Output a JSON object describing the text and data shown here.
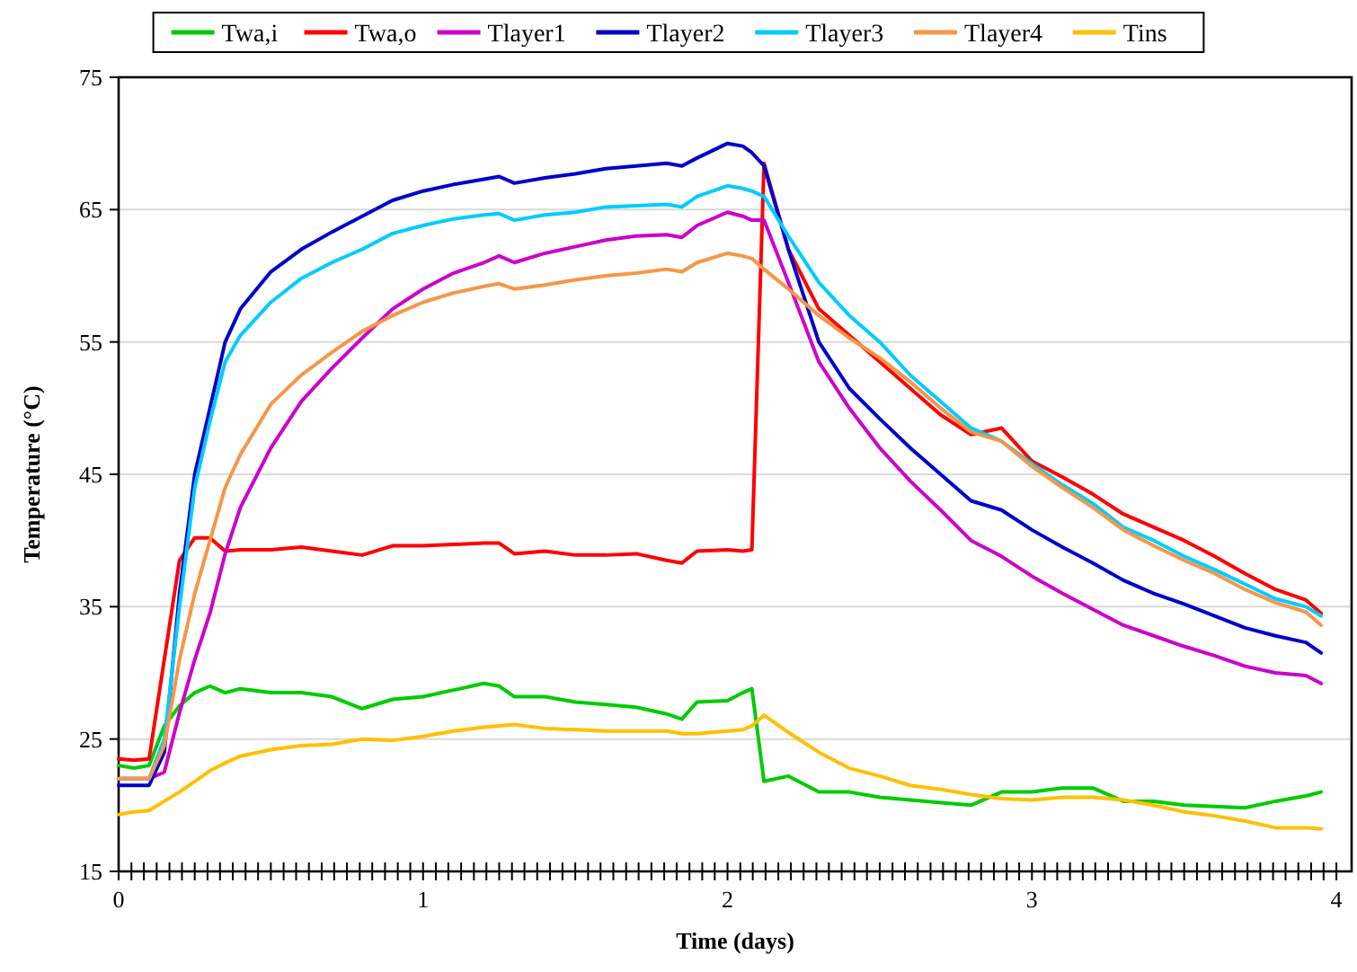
{
  "chart_data": {
    "type": "line",
    "xlabel": "Time (days)",
    "ylabel": "Temperature (°C)",
    "x": [
      0,
      0.05,
      0.1,
      0.15,
      0.2,
      0.25,
      0.3,
      0.35,
      0.4,
      0.5,
      0.6,
      0.7,
      0.8,
      0.9,
      1.0,
      1.1,
      1.2,
      1.25,
      1.3,
      1.4,
      1.5,
      1.6,
      1.7,
      1.8,
      1.85,
      1.9,
      2.0,
      2.05,
      2.08,
      2.12,
      2.2,
      2.3,
      2.4,
      2.5,
      2.6,
      2.7,
      2.8,
      2.9,
      3.0,
      3.1,
      3.2,
      3.3,
      3.4,
      3.5,
      3.6,
      3.7,
      3.8,
      3.9,
      3.95
    ],
    "xlim": [
      0,
      4.05
    ],
    "xticks": [
      0,
      {
        "value": 0.042,
        "label": null
      },
      {
        "value": 0.083,
        "label": null
      },
      {
        "value": 0.125,
        "label": null
      },
      {
        "value": 0.167,
        "label": null
      },
      {
        "value": 0.208,
        "label": null
      },
      {
        "value": 0.25,
        "label": null
      },
      {
        "value": 0.292,
        "label": null
      },
      {
        "value": 0.333,
        "label": null
      },
      {
        "value": 0.375,
        "label": null
      },
      {
        "value": 0.417,
        "label": null
      },
      {
        "value": 0.458,
        "label": null
      },
      {
        "value": 0.5,
        "label": null
      },
      {
        "value": 0.542,
        "label": null
      },
      {
        "value": 0.583,
        "label": null
      },
      {
        "value": 0.625,
        "label": null
      },
      {
        "value": 0.667,
        "label": null
      },
      {
        "value": 0.708,
        "label": null
      },
      {
        "value": 0.75,
        "label": null
      },
      {
        "value": 0.792,
        "label": null
      },
      {
        "value": 0.833,
        "label": null
      },
      {
        "value": 0.875,
        "label": null
      },
      {
        "value": 0.917,
        "label": null
      },
      {
        "value": 0.958,
        "label": null
      },
      1,
      {
        "value": 1.042,
        "label": null
      },
      {
        "value": 1.083,
        "label": null
      },
      {
        "value": 1.125,
        "label": null
      },
      {
        "value": 1.167,
        "label": null
      },
      {
        "value": 1.208,
        "label": null
      },
      {
        "value": 1.25,
        "label": null
      },
      {
        "value": 1.292,
        "label": null
      },
      {
        "value": 1.333,
        "label": null
      },
      {
        "value": 1.375,
        "label": null
      },
      {
        "value": 1.417,
        "label": null
      },
      {
        "value": 1.458,
        "label": null
      },
      {
        "value": 1.5,
        "label": null
      },
      {
        "value": 1.542,
        "label": null
      },
      {
        "value": 1.583,
        "label": null
      },
      {
        "value": 1.625,
        "label": null
      },
      {
        "value": 1.667,
        "label": null
      },
      {
        "value": 1.708,
        "label": null
      },
      {
        "value": 1.75,
        "label": null
      },
      {
        "value": 1.792,
        "label": null
      },
      {
        "value": 1.833,
        "label": null
      },
      {
        "value": 1.875,
        "label": null
      },
      {
        "value": 1.917,
        "label": null
      },
      {
        "value": 1.958,
        "label": null
      },
      2,
      {
        "value": 2.042,
        "label": null
      },
      {
        "value": 2.083,
        "label": null
      },
      {
        "value": 2.125,
        "label": null
      },
      {
        "value": 2.167,
        "label": null
      },
      {
        "value": 2.208,
        "label": null
      },
      {
        "value": 2.25,
        "label": null
      },
      {
        "value": 2.292,
        "label": null
      },
      {
        "value": 2.333,
        "label": null
      },
      {
        "value": 2.375,
        "label": null
      },
      {
        "value": 2.417,
        "label": null
      },
      {
        "value": 2.458,
        "label": null
      },
      {
        "value": 2.5,
        "label": null
      },
      {
        "value": 2.542,
        "label": null
      },
      {
        "value": 2.583,
        "label": null
      },
      {
        "value": 2.625,
        "label": null
      },
      {
        "value": 2.667,
        "label": null
      },
      {
        "value": 2.708,
        "label": null
      },
      {
        "value": 2.75,
        "label": null
      },
      {
        "value": 2.792,
        "label": null
      },
      {
        "value": 2.833,
        "label": null
      },
      {
        "value": 2.875,
        "label": null
      },
      {
        "value": 2.917,
        "label": null
      },
      {
        "value": 2.958,
        "label": null
      },
      3,
      {
        "value": 3.042,
        "label": null
      },
      {
        "value": 3.083,
        "label": null
      },
      {
        "value": 3.125,
        "label": null
      },
      {
        "value": 3.167,
        "label": null
      },
      {
        "value": 3.208,
        "label": null
      },
      {
        "value": 3.25,
        "label": null
      },
      {
        "value": 3.292,
        "label": null
      },
      {
        "value": 3.333,
        "label": null
      },
      {
        "value": 3.375,
        "label": null
      },
      {
        "value": 3.417,
        "label": null
      },
      {
        "value": 3.458,
        "label": null
      },
      {
        "value": 3.5,
        "label": null
      },
      {
        "value": 3.542,
        "label": null
      },
      {
        "value": 3.583,
        "label": null
      },
      {
        "value": 3.625,
        "label": null
      },
      {
        "value": 3.667,
        "label": null
      },
      {
        "value": 3.708,
        "label": null
      },
      {
        "value": 3.75,
        "label": null
      },
      {
        "value": 3.792,
        "label": null
      },
      {
        "value": 3.833,
        "label": null
      },
      {
        "value": 3.875,
        "label": null
      },
      {
        "value": 3.917,
        "label": null
      },
      {
        "value": 3.958,
        "label": null
      },
      4
    ],
    "ylim": [
      15,
      75
    ],
    "yticks": [
      15,
      25,
      35,
      45,
      55,
      65,
      75
    ],
    "grid": "y",
    "legend": "top",
    "marker": "none",
    "line_style": "solid",
    "series": [
      {
        "name": "Twa,i",
        "color": "#00cc00",
        "values": [
          23,
          22.8,
          23,
          26,
          27.5,
          28.5,
          29,
          28.5,
          28.8,
          28.5,
          28.5,
          28.2,
          27.3,
          28,
          28.2,
          28.7,
          29.2,
          29,
          28.2,
          28.2,
          27.8,
          27.6,
          27.4,
          26.9,
          26.5,
          27.8,
          27.9,
          28.5,
          28.8,
          21.8,
          22.2,
          21,
          21,
          20.6,
          20.4,
          20.2,
          20,
          21,
          21,
          21.3,
          21.3,
          20.3,
          20.3,
          20,
          19.9,
          19.8,
          20.3,
          20.7,
          21
        ]
      },
      {
        "name": "Twa,o",
        "color": "#ff0000",
        "values": [
          23.5,
          23.4,
          23.5,
          31,
          38.5,
          40.2,
          40.2,
          39.2,
          39.3,
          39.3,
          39.5,
          39.2,
          38.9,
          39.6,
          39.6,
          39.7,
          39.8,
          39.8,
          39,
          39.2,
          38.9,
          38.9,
          39,
          38.5,
          38.3,
          39.2,
          39.3,
          39.2,
          39.3,
          68.5,
          62,
          57.5,
          55.5,
          53.5,
          51.5,
          49.5,
          48,
          48.5,
          46,
          44.8,
          43.5,
          42,
          41,
          40,
          38.8,
          37.5,
          36.3,
          35.5,
          34.5
        ]
      },
      {
        "name": "Tlayer1",
        "color": "#cc00cc",
        "values": [
          22,
          22,
          22,
          22.5,
          27,
          31,
          34.5,
          39,
          42.5,
          47,
          50.5,
          53,
          55.3,
          57.5,
          59,
          60.2,
          61,
          61.5,
          61,
          61.7,
          62.2,
          62.7,
          63,
          63.1,
          62.9,
          63.8,
          64.8,
          64.5,
          64.2,
          64.2,
          59.5,
          53.5,
          50,
          47,
          44.5,
          42.3,
          40,
          38.8,
          37.3,
          36,
          34.8,
          33.6,
          32.8,
          32,
          31.3,
          30.5,
          30,
          29.8,
          29.2
        ]
      },
      {
        "name": "Tlayer2",
        "color": "#0000cc",
        "values": [
          21.5,
          21.5,
          21.5,
          24,
          36,
          45,
          50,
          55,
          57.5,
          60.3,
          62,
          63.3,
          64.5,
          65.7,
          66.4,
          66.9,
          67.3,
          67.5,
          67,
          67.4,
          67.7,
          68.1,
          68.3,
          68.5,
          68.3,
          68.9,
          70,
          69.8,
          69.3,
          68.3,
          62,
          55,
          51.5,
          49.2,
          47,
          45,
          43,
          42.3,
          40.8,
          39.5,
          38.3,
          37,
          36,
          35.2,
          34.3,
          33.4,
          32.8,
          32.3,
          31.5
        ]
      },
      {
        "name": "Tlayer3",
        "color": "#00ccff",
        "values": [
          22,
          22,
          22,
          25,
          35,
          44,
          49,
          53.5,
          55.5,
          58,
          59.8,
          61,
          62,
          63.2,
          63.8,
          64.3,
          64.6,
          64.7,
          64.2,
          64.6,
          64.8,
          65.2,
          65.3,
          65.4,
          65.2,
          66,
          66.8,
          66.6,
          66.4,
          66,
          63,
          59.5,
          57,
          55,
          52.5,
          50.5,
          48.5,
          47.5,
          45.8,
          44.2,
          42.8,
          41,
          40,
          38.8,
          37.8,
          36.7,
          35.6,
          35,
          34.3
        ]
      },
      {
        "name": "Tlayer4",
        "color": "#f79646",
        "values": [
          22,
          22,
          22,
          24.5,
          31,
          36,
          40,
          44,
          46.5,
          50.3,
          52.5,
          54.2,
          55.8,
          57,
          58,
          58.7,
          59.2,
          59.4,
          59,
          59.3,
          59.7,
          60,
          60.2,
          60.5,
          60.3,
          61,
          61.7,
          61.5,
          61.3,
          60.5,
          59,
          57,
          55.3,
          53.8,
          52,
          50,
          48.2,
          47.5,
          45.6,
          44,
          42.5,
          40.8,
          39.6,
          38.5,
          37.5,
          36.3,
          35.3,
          34.6,
          33.6
        ]
      },
      {
        "name": "Tins",
        "color": "#ffc000",
        "values": [
          19.3,
          19.5,
          19.6,
          20.3,
          21,
          21.8,
          22.6,
          23.2,
          23.7,
          24.2,
          24.5,
          24.6,
          25,
          24.9,
          25.2,
          25.6,
          25.9,
          26,
          26.1,
          25.8,
          25.7,
          25.6,
          25.6,
          25.6,
          25.4,
          25.4,
          25.6,
          25.7,
          26,
          26.8,
          25.5,
          24,
          22.8,
          22.2,
          21.5,
          21.2,
          20.8,
          20.5,
          20.4,
          20.6,
          20.6,
          20.4,
          20,
          19.5,
          19.2,
          18.8,
          18.3,
          18.3,
          18.2
        ]
      }
    ]
  }
}
